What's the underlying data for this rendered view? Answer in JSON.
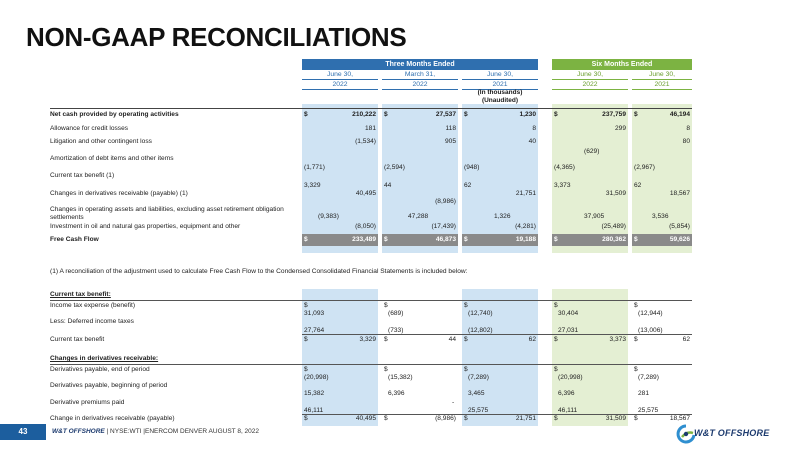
{
  "title": "NON-GAAP RECONCILIATIONS",
  "header": {
    "three_months": "Three Months Ended",
    "six_months": "Six Months Ended",
    "cols": [
      {
        "date": "June 30,",
        "year": "2022"
      },
      {
        "date": "March 31,",
        "year": "2022"
      },
      {
        "date": "June 30,",
        "year": "2021"
      },
      {
        "date": "June 30,",
        "year": "2022"
      },
      {
        "date": "June 30,",
        "year": "2021"
      }
    ],
    "units_line1": "(In thousands)",
    "units_line2": "(Unaudited)"
  },
  "rows": {
    "net_cash": {
      "label": "Net cash provided by operating activities",
      "d": [
        "$",
        "$",
        "$",
        "$",
        "$"
      ],
      "v": [
        "210,222",
        "27,537",
        "1,230",
        "237,759",
        "46,194"
      ]
    },
    "allowance": {
      "label": "Allowance for credit losses",
      "v": [
        "181",
        "118",
        "8",
        "299",
        "8"
      ]
    },
    "litigation": {
      "label": "Litigation and other contingent loss",
      "v": [
        "(1,534)",
        "905",
        "40",
        "",
        "80"
      ]
    },
    "amortization": {
      "label": "Amortization of debt items and other items",
      "v": [
        "(1,771)",
        "(2,594)",
        "(948)",
        "(4,365)",
        "(2,967)"
      ],
      "extra": "(629)"
    },
    "tax_benefit": {
      "label": "Current tax benefit (1)",
      "v": [
        "3,329",
        "44",
        "62",
        "3,373",
        "62"
      ]
    },
    "derivatives": {
      "label": "Changes in derivatives receivable (payable) (1)",
      "v": [
        "40,495",
        "(8,986)",
        "21,751",
        "31,509",
        "18,567"
      ]
    },
    "working_cap": {
      "label1": "Changes in operating assets and liabilities, excluding asset retirement obligation",
      "label2": "settlements",
      "v": [
        "(9,383)",
        "47,288",
        "1,326",
        "37,905",
        "3,536"
      ]
    },
    "investment": {
      "label": "Investment in oil and natural gas properties, equipment and other",
      "v": [
        "(8,050)",
        "(17,439)",
        "(4,281)",
        "(25,489)",
        "(5,854)"
      ]
    },
    "fcf": {
      "label": "Free Cash Flow",
      "d": [
        "$",
        "$",
        "$",
        "$",
        "$"
      ],
      "v": [
        "233,489",
        "46,873",
        "19,188",
        "280,362",
        "59,626"
      ]
    }
  },
  "footnote": "(1) A reconciliation of the adjustment used to calculate Free Cash Flow to the Condensed Consolidated Financial Statements is included below:",
  "tax_section": {
    "heading": "Current tax benefit:",
    "expense": {
      "label": "Income tax expense (benefit)",
      "v": [
        "31,093",
        "(689)",
        "(12,740)",
        "30,404",
        "(12,944)"
      ]
    },
    "deferred": {
      "label": "Less: Deferred income taxes",
      "v": [
        "27,764",
        "(733)",
        "(12,802)",
        "27,031",
        "(13,006)"
      ]
    },
    "total": {
      "label": "Current tax benefit",
      "v": [
        "3,329",
        "44",
        "62",
        "3,373",
        "62"
      ]
    }
  },
  "deriv_section": {
    "heading": "Changes in derivatives receivable:",
    "end": {
      "label": "Derivatives payable, end of period",
      "v": [
        "(20,998)",
        "(15,382)",
        "(7,289)",
        "(20,998)",
        "(7,289)"
      ]
    },
    "begin": {
      "label": "Derivatives payable, beginning of period",
      "v": [
        "15,382",
        "6,396",
        "3,465",
        "6,396",
        "281"
      ]
    },
    "premiums": {
      "label": "Derivative premiums paid",
      "v": [
        "46,111",
        "-",
        "25,575",
        "46,111",
        "25,575"
      ]
    },
    "total": {
      "label": "Change in derivatives receivable (payable)",
      "v": [
        "40,495",
        "(8,986)",
        "21,751",
        "31,509",
        "18,567"
      ]
    }
  },
  "dollar": "$",
  "footer": {
    "page": "43",
    "company": "W&T OFFSHORE",
    "sep1": "|",
    "ticker": "NYSE:WTI",
    "sep2": "|",
    "event": "ENERCOM DENVER  AUGUST 8, 2022",
    "logo_text": "W&T OFFSHORE"
  },
  "colors": {
    "blue": "#2f6faf",
    "green": "#7cb342",
    "fcf_gray": "#8a8a8a"
  }
}
